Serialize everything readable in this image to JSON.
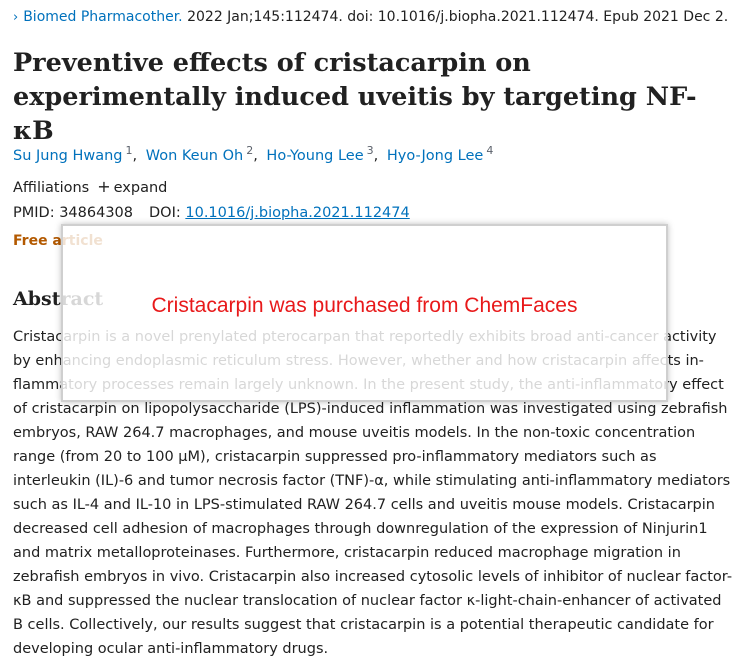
{
  "citation": {
    "chevron": "›",
    "journal": "Biomed Pharmacother.",
    "details": " 2022 Jan;145:112474. doi: 10.1016/j.biopha.2021.112474. Epub 2021 Dec 2."
  },
  "title": "Preventive effects of cristacarpin on experimentally induced uveitis by targeting NF-κB",
  "authors": [
    {
      "name": "Su Jung Hwang",
      "aff": "1"
    },
    {
      "name": "Won Keun Oh",
      "aff": "2"
    },
    {
      "name": "Ho-Young Lee",
      "aff": "3"
    },
    {
      "name": "Hyo-Jong Lee",
      "aff": "4"
    }
  ],
  "affiliations": {
    "label": "Affiliations",
    "expand_icon": "+",
    "expand_label": "expand"
  },
  "ids": {
    "pmid_label": "PMID:",
    "pmid": "34864308",
    "doi_label": "DOI:",
    "doi": "10.1016/j.biopha.2021.112474"
  },
  "free_article": "Free article",
  "abstract": {
    "heading": "Abstract",
    "text": "Cristacarpin is a novel prenylated pterocarpan that reportedly exhibits broad anti-cancer activity by enhancing endoplasmic reticulum stress. However, whether and how cristacarpin affects in-flammatory processes remain largely unknown. In the present study, the anti-inflammatory effect of cristacarpin on lipopolysaccharide (LPS)-induced inflammation was investigated using zebrafish embryos, RAW 264.7 macrophages, and mouse uveitis models. In the non-toxic concentration range (from 20 to 100 µM), cristacarpin suppressed pro-inflammatory mediators such as interleukin (IL)-6 and tumor necrosis factor (TNF)-α, while stimulating anti-inflammatory mediators such as IL-4 and IL-10 in LPS-stimulated RAW 264.7 cells and uveitis mouse models. Cristacarpin decreased cell adhesion of macrophages through downregulation of the expression of Ninjurin1 and matrix metalloproteinases. Furthermore, cristacarpin reduced macrophage migration in zebrafish embryos in vivo. Cristacarpin also increased cytosolic levels of inhibitor of nuclear factor-κB and suppressed the nuclear translocation of nuclear factor κ-light-chain-enhancer of activated B cells. Collectively, our results suggest that cristacarpin is a potential therapeutic candidate for developing ocular anti-inflammatory drugs."
  },
  "overlay": {
    "text": "Cristacarpin was purchased from ChemFaces",
    "color": "#e8191a"
  },
  "colors": {
    "link": "#0071bc",
    "free_article": "#b35900",
    "text": "#212121"
  }
}
